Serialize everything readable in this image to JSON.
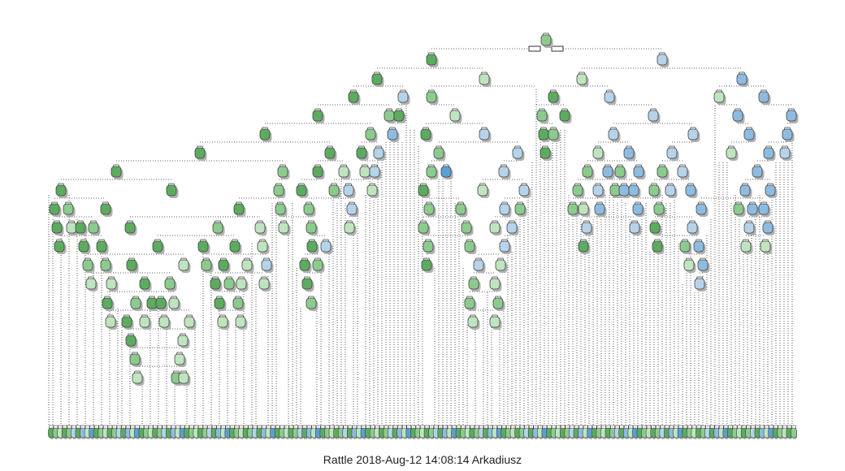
{
  "caption": "Rattle 2018-Aug-12 14:08:14 Arkadiusz",
  "colors": {
    "dark_green": "#5cab5f",
    "mid_green": "#8ccb8e",
    "light_green": "#bfe4bf",
    "light_blue": "#b5d3ea",
    "mid_blue": "#8ebbe0",
    "dark_blue": "#5b9fd3",
    "edge": "#333333",
    "node_border": "#444444",
    "shadow": "#b0b0b0"
  },
  "tree": {
    "type": "decision-tree",
    "leaf_count": 165,
    "leaf_palette": [
      "dark_green",
      "mid_green",
      "light_green",
      "dark_green",
      "mid_green",
      "light_blue",
      "dark_green",
      "mid_blue",
      "light_green",
      "dark_blue"
    ]
  }
}
